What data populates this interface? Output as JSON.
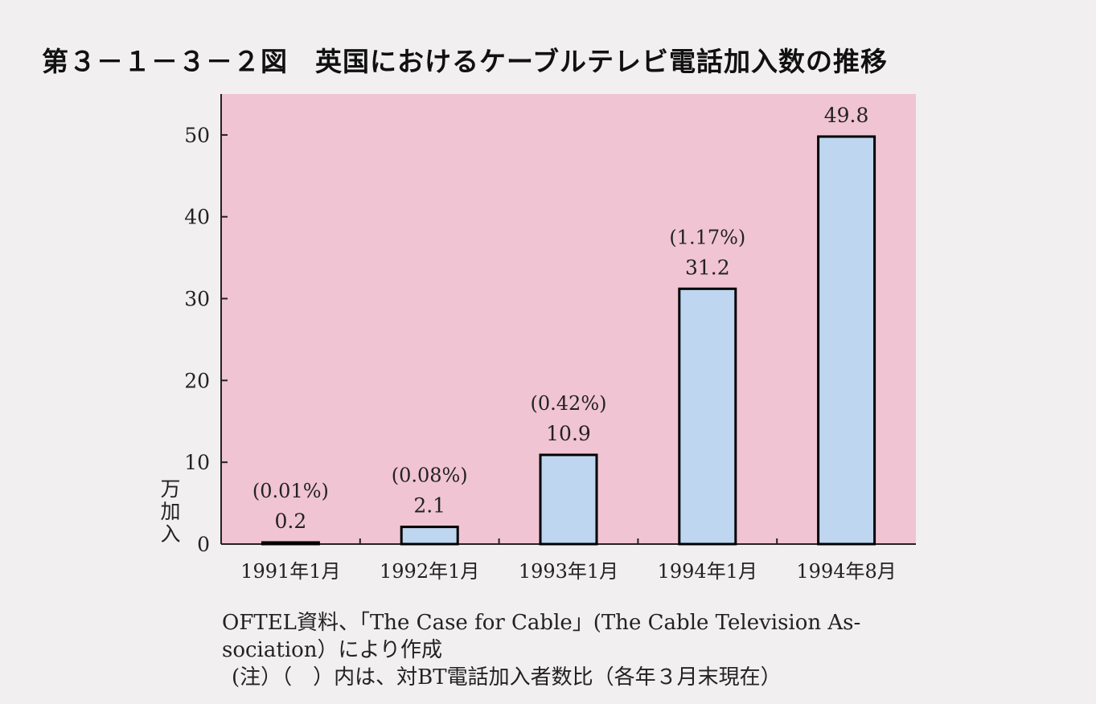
{
  "title": "第３－１－３－２図　英国におけるケーブルテレビ電話加入数の推移",
  "chart_data": {
    "type": "bar",
    "categories": [
      "1991年1月",
      "1992年1月",
      "1993年1月",
      "1994年1月",
      "1994年8月"
    ],
    "values": [
      0.2,
      2.1,
      10.9,
      31.2,
      49.8
    ],
    "value_labels": [
      "0.2",
      "2.1",
      "10.9",
      "31.2",
      "49.8"
    ],
    "share_labels": [
      "(0.01%)",
      "(0.08%)",
      "(0.42%)",
      "(1.17%)",
      ""
    ],
    "ylabel": "万加入",
    "yticks": [
      0,
      10,
      20,
      30,
      40,
      50
    ],
    "ylim": [
      0,
      55
    ],
    "grid": false,
    "colors": {
      "plot_bg": "#f0c4d3",
      "bar_fill": "#bed6ef",
      "bar_stroke": "#000000"
    }
  },
  "notes": {
    "source_line1": "OFTEL資料、「The Case for Cable」(The Cable Television As-",
    "source_line2": "sociation）により作成",
    "note": "(注）（　）内は、対BT電話加入者数比（各年３月末現在）"
  }
}
